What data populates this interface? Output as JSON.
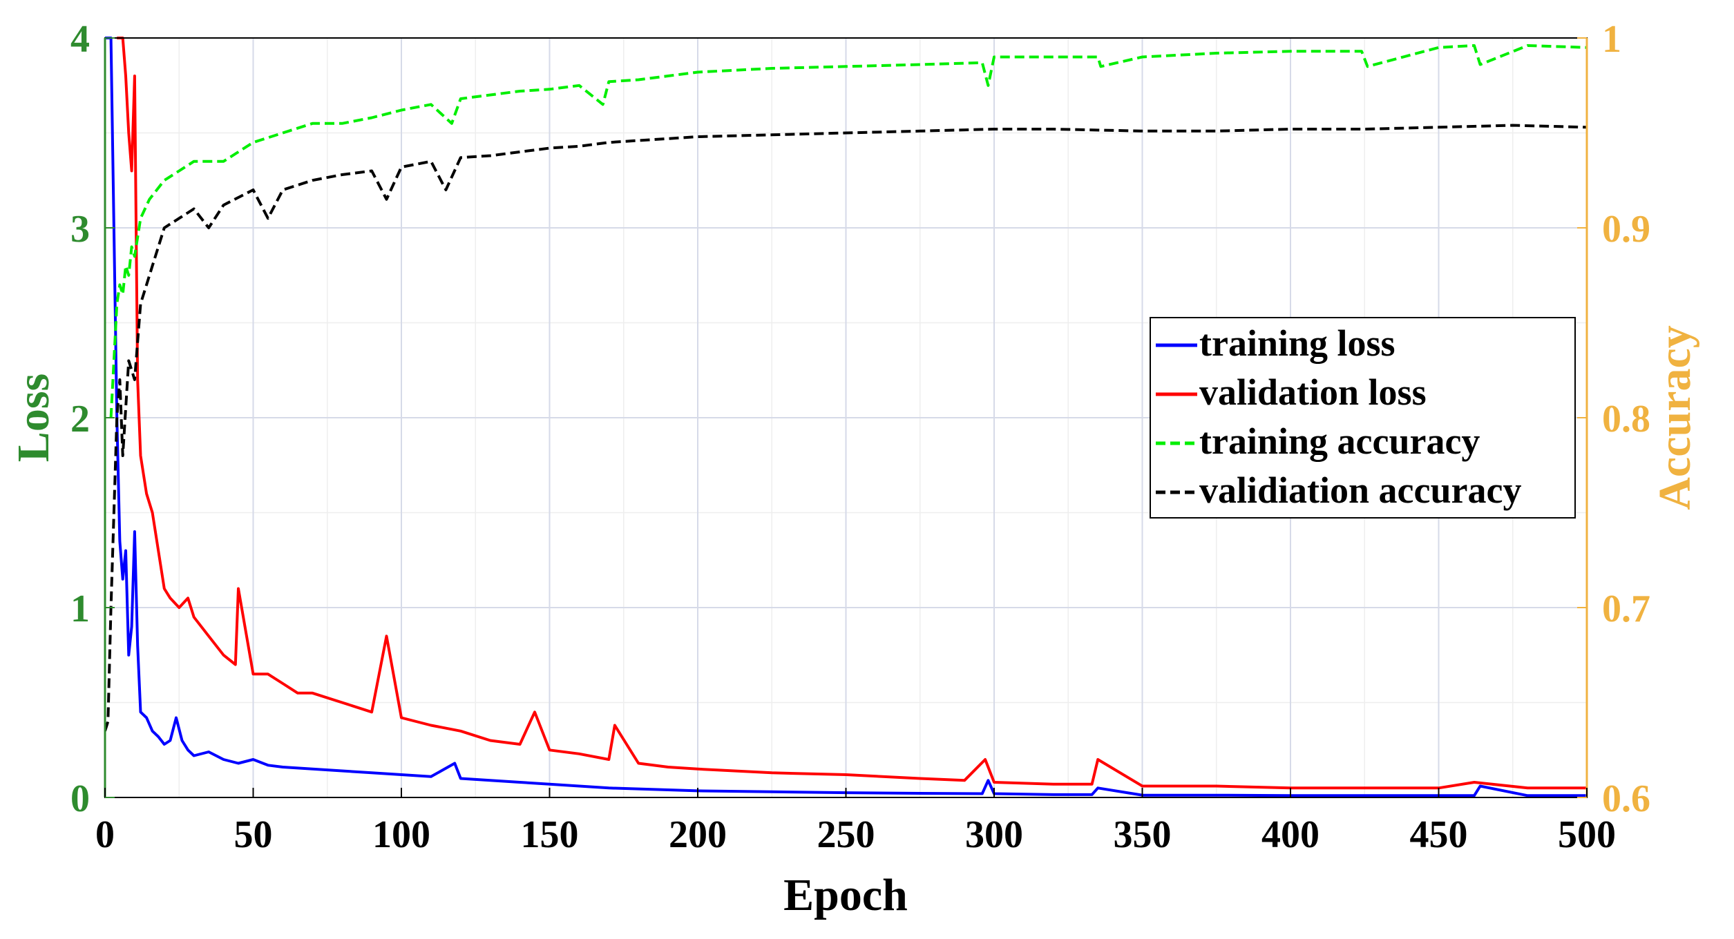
{
  "chart_data": {
    "type": "line",
    "title": "",
    "xlabel": "Epoch",
    "ylabel_left": "Loss",
    "ylabel_right": "Accuracy",
    "xlim": [
      0,
      500
    ],
    "ylim_left": [
      0,
      4
    ],
    "ylim_right": [
      0.6,
      1.0
    ],
    "grid": true,
    "legend_position": "right-middle",
    "x_ticks": [
      0,
      50,
      100,
      150,
      200,
      250,
      300,
      350,
      400,
      450,
      500
    ],
    "x_tick_labels": [
      "0",
      "50",
      "100",
      "150",
      "200",
      "250",
      "300",
      "350",
      "400",
      "450",
      "500"
    ],
    "y_left_ticks": [
      0,
      1,
      2,
      3,
      4
    ],
    "y_left_tick_labels": [
      "0",
      "1",
      "2",
      "3",
      "4"
    ],
    "y_right_ticks": [
      0.6,
      0.7,
      0.8,
      0.9,
      1.0
    ],
    "y_right_tick_labels": [
      "0.6",
      "0.7",
      "0.8",
      "0.9",
      "1"
    ],
    "colors": {
      "left_axis": "#2e8b2e",
      "right_axis": "#f0b240",
      "grid": "#d6dae8"
    },
    "series": [
      {
        "name": "training loss",
        "axis": "left",
        "color": "#0000ff",
        "dash": "solid",
        "x": [
          0,
          2,
          3,
          4,
          5,
          6,
          7,
          8,
          9,
          10,
          11,
          12,
          14,
          16,
          18,
          20,
          22,
          24,
          26,
          28,
          30,
          35,
          40,
          45,
          50,
          55,
          60,
          70,
          80,
          90,
          100,
          110,
          118,
          120,
          130,
          140,
          150,
          160,
          170,
          180,
          190,
          200,
          225,
          250,
          275,
          296,
          298,
          300,
          320,
          333,
          335,
          350,
          375,
          400,
          425,
          450,
          462,
          464,
          480,
          500
        ],
        "values": [
          4.0,
          4.0,
          3.0,
          2.0,
          1.35,
          1.15,
          1.3,
          0.75,
          0.9,
          1.4,
          0.8,
          0.45,
          0.42,
          0.35,
          0.32,
          0.28,
          0.3,
          0.42,
          0.3,
          0.25,
          0.22,
          0.24,
          0.2,
          0.18,
          0.2,
          0.17,
          0.16,
          0.15,
          0.14,
          0.13,
          0.12,
          0.11,
          0.18,
          0.1,
          0.09,
          0.08,
          0.07,
          0.06,
          0.05,
          0.045,
          0.04,
          0.035,
          0.03,
          0.025,
          0.022,
          0.02,
          0.09,
          0.02,
          0.015,
          0.015,
          0.05,
          0.012,
          0.012,
          0.01,
          0.01,
          0.01,
          0.01,
          0.06,
          0.01,
          0.01
        ]
      },
      {
        "name": "validation loss",
        "axis": "left",
        "color": "#ff0000",
        "dash": "solid",
        "x": [
          4,
          5,
          6,
          7,
          8,
          9,
          10,
          11,
          12,
          13,
          14,
          16,
          18,
          20,
          22,
          25,
          28,
          30,
          35,
          40,
          44,
          45,
          50,
          55,
          60,
          65,
          70,
          80,
          90,
          95,
          100,
          110,
          120,
          130,
          140,
          145,
          150,
          160,
          170,
          172,
          180,
          190,
          200,
          225,
          250,
          275,
          290,
          297,
          300,
          320,
          333,
          335,
          350,
          375,
          400,
          425,
          450,
          462,
          480,
          500
        ],
        "values": [
          4.0,
          4.0,
          4.0,
          3.8,
          3.5,
          3.3,
          3.8,
          2.2,
          1.8,
          1.7,
          1.6,
          1.5,
          1.3,
          1.1,
          1.05,
          1.0,
          1.05,
          0.95,
          0.85,
          0.75,
          0.7,
          1.1,
          0.65,
          0.65,
          0.6,
          0.55,
          0.55,
          0.5,
          0.45,
          0.85,
          0.42,
          0.38,
          0.35,
          0.3,
          0.28,
          0.45,
          0.25,
          0.23,
          0.2,
          0.38,
          0.18,
          0.16,
          0.15,
          0.13,
          0.12,
          0.1,
          0.09,
          0.2,
          0.08,
          0.07,
          0.07,
          0.2,
          0.06,
          0.06,
          0.05,
          0.05,
          0.05,
          0.08,
          0.05,
          0.05
        ]
      },
      {
        "name": "training accuracy",
        "axis": "right",
        "color": "#00ee00",
        "dash": "dashed",
        "x": [
          2,
          3,
          4,
          5,
          6,
          7,
          8,
          9,
          10,
          12,
          15,
          20,
          25,
          30,
          40,
          50,
          60,
          70,
          80,
          90,
          100,
          110,
          117,
          120,
          130,
          140,
          150,
          160,
          168,
          170,
          180,
          190,
          200,
          225,
          250,
          275,
          296,
          298,
          300,
          320,
          335,
          336,
          350,
          375,
          400,
          424,
          426,
          450,
          462,
          464,
          480,
          500
        ],
        "values": [
          0.8,
          0.83,
          0.86,
          0.87,
          0.865,
          0.88,
          0.875,
          0.89,
          0.885,
          0.905,
          0.915,
          0.925,
          0.93,
          0.935,
          0.935,
          0.945,
          0.95,
          0.955,
          0.955,
          0.958,
          0.962,
          0.965,
          0.955,
          0.968,
          0.97,
          0.972,
          0.973,
          0.975,
          0.965,
          0.977,
          0.978,
          0.98,
          0.982,
          0.984,
          0.985,
          0.986,
          0.987,
          0.975,
          0.99,
          0.99,
          0.99,
          0.985,
          0.99,
          0.992,
          0.993,
          0.993,
          0.985,
          0.995,
          0.996,
          0.986,
          0.996,
          0.995
        ]
      },
      {
        "name": "validiation accuracy",
        "axis": "right",
        "color": "#000000",
        "dash": "dashed",
        "x": [
          0,
          1,
          2,
          3,
          4,
          5,
          6,
          8,
          10,
          12,
          14,
          16,
          20,
          25,
          30,
          35,
          40,
          50,
          55,
          60,
          70,
          80,
          90,
          95,
          100,
          110,
          115,
          120,
          130,
          140,
          150,
          160,
          170,
          180,
          190,
          200,
          225,
          250,
          275,
          300,
          320,
          350,
          375,
          400,
          425,
          450,
          475,
          500
        ],
        "values": [
          0.635,
          0.64,
          0.7,
          0.75,
          0.8,
          0.82,
          0.78,
          0.83,
          0.82,
          0.86,
          0.87,
          0.88,
          0.9,
          0.905,
          0.91,
          0.9,
          0.912,
          0.92,
          0.905,
          0.92,
          0.925,
          0.928,
          0.93,
          0.915,
          0.932,
          0.935,
          0.92,
          0.937,
          0.938,
          0.94,
          0.942,
          0.943,
          0.945,
          0.946,
          0.947,
          0.948,
          0.949,
          0.95,
          0.951,
          0.952,
          0.952,
          0.951,
          0.951,
          0.952,
          0.952,
          0.953,
          0.954,
          0.953
        ]
      }
    ]
  }
}
